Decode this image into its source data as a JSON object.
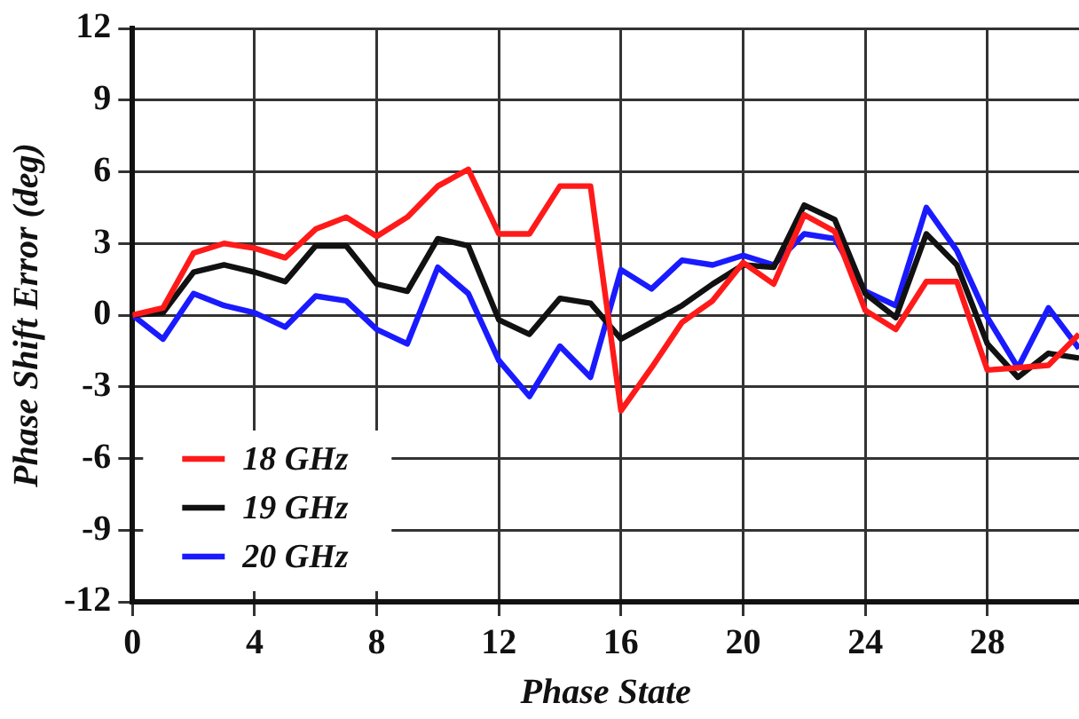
{
  "chart_data": {
    "type": "line",
    "xlabel": "Phase State",
    "ylabel": "Phase Shift Error (deg)",
    "x": [
      0,
      1,
      2,
      3,
      4,
      5,
      6,
      7,
      8,
      9,
      10,
      11,
      12,
      13,
      14,
      15,
      16,
      17,
      18,
      19,
      20,
      21,
      22,
      23,
      24,
      25,
      26,
      27,
      28,
      29,
      30,
      31
    ],
    "series": [
      {
        "name": "18 GHz",
        "color": "#ff1a1a",
        "values": [
          0,
          0.3,
          2.6,
          3.0,
          2.8,
          2.4,
          3.6,
          4.1,
          3.3,
          4.1,
          5.4,
          6.1,
          3.4,
          3.4,
          5.4,
          5.4,
          -4.0,
          -2.2,
          -0.3,
          0.6,
          2.2,
          1.3,
          4.2,
          3.5,
          0.2,
          -0.6,
          1.4,
          1.4,
          -2.3,
          -2.2,
          -2.1,
          -0.8
        ]
      },
      {
        "name": "19 GHz",
        "color": "#111111",
        "values": [
          0,
          0.1,
          1.8,
          2.1,
          1.8,
          1.4,
          2.9,
          2.9,
          1.3,
          1.0,
          3.2,
          2.9,
          -0.2,
          -0.8,
          0.7,
          0.5,
          -1.0,
          -0.3,
          0.4,
          1.3,
          2.1,
          2.0,
          4.6,
          4.0,
          0.9,
          -0.1,
          3.4,
          2.1,
          -1.2,
          -2.6,
          -1.6,
          -1.8
        ]
      },
      {
        "name": "20 GHz",
        "color": "#1a1aff",
        "values": [
          0,
          -1.0,
          0.9,
          0.4,
          0.1,
          -0.5,
          0.8,
          0.6,
          -0.6,
          -1.2,
          2.0,
          0.9,
          -1.9,
          -3.4,
          -1.3,
          -2.6,
          1.9,
          1.1,
          2.3,
          2.1,
          2.5,
          2.1,
          3.4,
          3.2,
          1.0,
          0.4,
          4.5,
          2.7,
          -0.1,
          -2.2,
          0.3,
          -1.4
        ]
      }
    ],
    "xlim": [
      0,
      31
    ],
    "xticks": [
      0,
      4,
      8,
      12,
      16,
      20,
      24,
      28
    ],
    "ylim": [
      -12,
      12
    ],
    "yticks": [
      -12,
      -9,
      -6,
      -3,
      0,
      3,
      6,
      9,
      12
    ],
    "grid": true,
    "legend": "bottom left",
    "marker": "none",
    "line_style": "solid"
  }
}
